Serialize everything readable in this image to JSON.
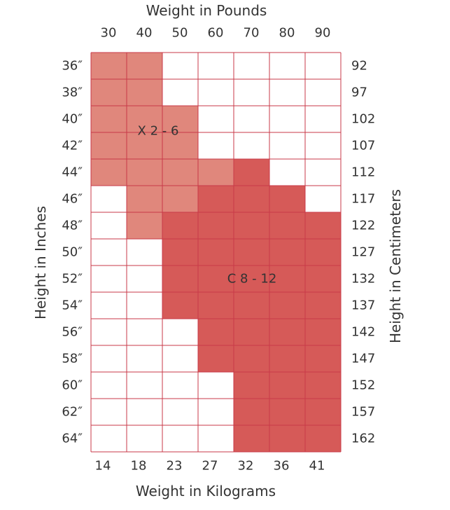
{
  "chart_data": {
    "type": "heatmap",
    "title": "",
    "top_axis_label": "Weight in Pounds",
    "bottom_axis_label": "Weight in Kilograms",
    "left_axis_label": "Height in Inches",
    "right_axis_label": "Height in Centimeters",
    "pounds_ticks": [
      "30",
      "40",
      "50",
      "60",
      "70",
      "80",
      "90"
    ],
    "kilogram_ticks": [
      "14",
      "18",
      "23",
      "27",
      "32",
      "36",
      "41"
    ],
    "inch_ticks": [
      "36″",
      "38″",
      "40″",
      "42″",
      "44″",
      "46″",
      "48″",
      "50″",
      "52″",
      "54″",
      "56″",
      "58″",
      "60″",
      "62″",
      "64″"
    ],
    "centimeter_ticks": [
      "92",
      "97",
      "102",
      "107",
      "112",
      "117",
      "122",
      "127",
      "132",
      "137",
      "142",
      "147",
      "152",
      "157",
      "162"
    ],
    "series": [
      {
        "name": "X 2 - 6",
        "color": "#e0877c",
        "rows": [
          [
            0,
            1
          ],
          [
            0,
            1
          ],
          [
            0,
            2
          ],
          [
            0,
            2
          ],
          [
            0,
            3
          ],
          [
            1,
            2
          ],
          [
            1,
            1
          ],
          null,
          null,
          null,
          null,
          null,
          null,
          null,
          null
        ]
      },
      {
        "name": "C 8 - 12",
        "color": "#d65a58",
        "rows": [
          null,
          null,
          null,
          null,
          [
            4,
            4
          ],
          [
            3,
            5
          ],
          [
            2,
            6
          ],
          [
            2,
            6
          ],
          [
            2,
            6
          ],
          [
            2,
            6
          ],
          [
            3,
            6
          ],
          [
            3,
            6
          ],
          [
            4,
            6
          ],
          [
            4,
            6
          ],
          [
            4,
            6
          ]
        ]
      }
    ],
    "grid": true,
    "grid_color": "#c83a48"
  }
}
